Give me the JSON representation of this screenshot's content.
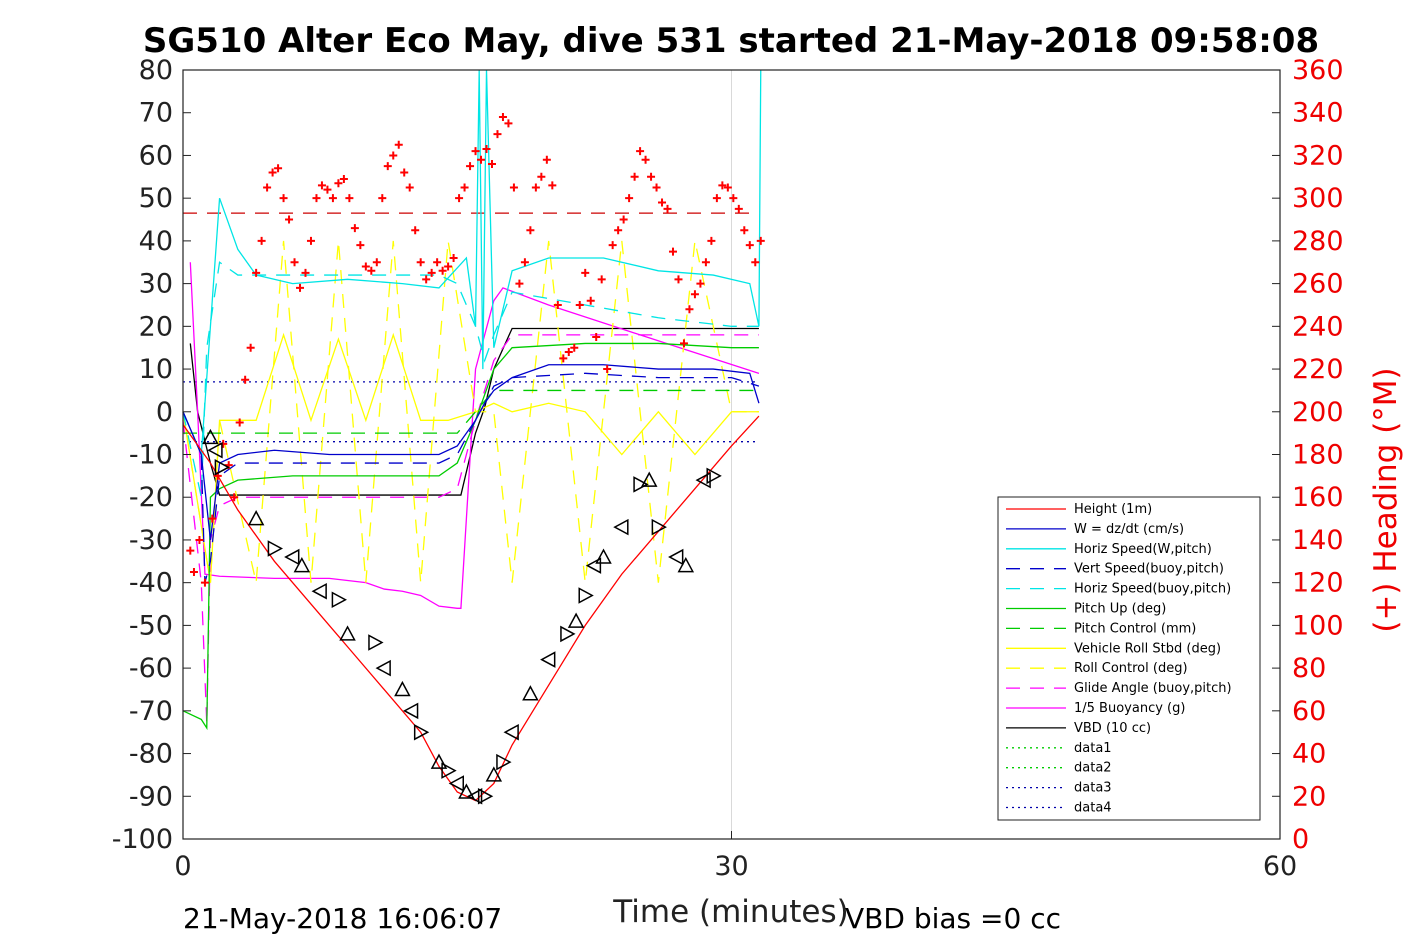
{
  "chart_data": {
    "type": "line",
    "title": "SG510 Alter Eco May, dive 531 started 21-May-2018 09:58:08",
    "xlabel": "Time (minutes)",
    "ylabel": "",
    "y2label": "(+) Heading (°M)",
    "xlim": [
      0,
      60
    ],
    "ylim": [
      -100,
      80
    ],
    "y2lim": [
      0,
      360
    ],
    "xticks": [
      0,
      30,
      60
    ],
    "yticks": [
      -100,
      -90,
      -80,
      -70,
      -60,
      -50,
      -40,
      -30,
      -20,
      -10,
      0,
      10,
      20,
      30,
      40,
      50,
      60,
      70,
      80
    ],
    "y2ticks": [
      0,
      20,
      40,
      60,
      80,
      100,
      120,
      140,
      160,
      180,
      200,
      220,
      240,
      260,
      280,
      300,
      320,
      340,
      360
    ],
    "grid": "vertical-only",
    "legend_position": "bottom-right",
    "footer_left": "21-May-2018 16:06:07",
    "footer_right": "VBD bias =0 cc",
    "series": [
      {
        "name": "Height (1m)",
        "color": "#ff0000",
        "dash": "solid",
        "x": [
          0,
          1.5,
          3,
          5,
          7,
          9,
          11,
          13,
          14,
          15,
          16,
          17,
          18,
          20,
          22,
          24,
          26,
          28,
          30,
          31.5
        ],
        "y": [
          -3,
          -12,
          -23,
          -35,
          -45,
          -55,
          -65,
          -75,
          -83,
          -89,
          -91,
          -87,
          -78,
          -64,
          -50,
          -38,
          -28,
          -18,
          -8,
          -1
        ]
      },
      {
        "name": "W = dz/dt (cm/s)",
        "color": "#0000cc",
        "dash": "solid",
        "x": [
          0,
          1,
          1.5,
          2,
          3,
          5,
          8,
          11,
          14,
          15,
          16,
          16.5,
          17,
          18,
          20,
          23,
          26,
          29,
          31,
          31.5
        ],
        "y": [
          0,
          -10,
          -30,
          -12,
          -10,
          -9,
          -10,
          -10,
          -10,
          -8,
          -2,
          2,
          5,
          8,
          11,
          11,
          10,
          10,
          9,
          2
        ]
      },
      {
        "name": "Horiz Speed(W,pitch)",
        "color": "#00e5e5",
        "dash": "solid",
        "x": [
          0,
          1,
          1.5,
          2,
          3,
          4,
          6,
          9,
          12,
          14,
          15.5,
          16,
          16.2,
          16.4,
          16.6,
          17,
          18,
          20,
          23,
          26,
          29,
          31,
          31.5,
          31.6
        ],
        "y": [
          0,
          -10,
          20,
          50,
          38,
          32,
          30,
          31,
          30,
          29,
          36,
          20,
          80,
          10,
          80,
          15,
          33,
          36,
          36,
          33,
          32,
          30,
          20,
          80
        ]
      },
      {
        "name": "Vert Speed(buoy,pitch)",
        "color": "#0000cc",
        "dash": "long",
        "x": [
          0,
          1,
          1.2,
          1.5,
          2,
          3,
          6,
          10,
          14,
          15,
          16,
          16.5,
          17,
          18,
          22,
          26,
          30,
          31.5
        ],
        "y": [
          0,
          -10,
          -40,
          -35,
          -15,
          -12,
          -12,
          -12,
          -12,
          -10,
          -2,
          2,
          6,
          8,
          9,
          8,
          8,
          6
        ]
      },
      {
        "name": "Horiz Speed(buoy,pitch)",
        "color": "#00e5e5",
        "dash": "long",
        "x": [
          0,
          1,
          1.3,
          2,
          3,
          6,
          10,
          14,
          15,
          16,
          16.5,
          17,
          18,
          22,
          26,
          30,
          31.5
        ],
        "y": [
          0,
          -20,
          15,
          35,
          32,
          32,
          32,
          32,
          30,
          20,
          12,
          18,
          28,
          25,
          22,
          20,
          20
        ]
      },
      {
        "name": "Pitch Up (deg)",
        "color": "#00cc00",
        "dash": "solid",
        "x": [
          0,
          1,
          1.3,
          1.5,
          2,
          3,
          6,
          10,
          14,
          15,
          16,
          17,
          18,
          22,
          26,
          30,
          31.5
        ],
        "y": [
          -70,
          -72,
          -74,
          -20,
          -18,
          -16,
          -15,
          -15,
          -15,
          -12,
          -2,
          10,
          15,
          16,
          16,
          15,
          15
        ]
      },
      {
        "name": "Pitch Control (mm)",
        "color": "#00cc00",
        "dash": "long",
        "x": [
          0,
          1.5,
          2,
          6,
          10,
          14,
          15,
          16,
          17,
          18,
          22,
          26,
          30,
          31.5
        ],
        "y": [
          -5,
          -5,
          -5,
          -5,
          -5,
          -5,
          -5,
          0,
          5,
          5,
          5,
          5,
          5,
          5
        ]
      },
      {
        "name": "Vehicle Roll Stbd (deg)",
        "color": "#ffff00",
        "dash": "solid",
        "x": [
          0,
          1.5,
          2,
          4,
          5.5,
          7,
          8.5,
          10,
          11.5,
          13,
          14.5,
          16,
          17,
          18,
          20,
          22,
          24,
          26,
          28,
          30,
          31.5
        ],
        "y": [
          0,
          -40,
          -2,
          -2,
          18,
          -2,
          17,
          -2,
          18,
          -2,
          -2,
          0,
          2,
          0,
          2,
          0,
          -10,
          0,
          -10,
          0,
          0
        ]
      },
      {
        "name": "Roll Control (deg)",
        "color": "#ffff00",
        "dash": "long",
        "x": [
          0,
          1.5,
          2,
          4,
          5.5,
          7,
          8.5,
          10,
          11.5,
          13,
          14.5,
          16,
          17,
          18,
          20,
          22,
          24,
          26,
          28,
          30,
          31.5
        ],
        "y": [
          0,
          -40,
          -2,
          -40,
          40,
          -40,
          40,
          -40,
          40,
          -40,
          40,
          0,
          0,
          -40,
          40,
          -40,
          40,
          -40,
          40,
          0,
          0
        ]
      },
      {
        "name": "Glide Angle (buoy,pitch)",
        "color": "#ff00ff",
        "dash": "long",
        "x": [
          0,
          1,
          1.3,
          1.5,
          2,
          3,
          6,
          10,
          14,
          15,
          16,
          17,
          18,
          22,
          26,
          30,
          31.5
        ],
        "y": [
          -2,
          -40,
          -73,
          -30,
          -22,
          -20,
          -20,
          -20,
          -20,
          -18,
          -2,
          12,
          18,
          18,
          18,
          18,
          18
        ]
      },
      {
        "name": "1/5 Buoyancy (g)",
        "color": "#ff00ff",
        "dash": "solid",
        "x": [
          0.4,
          0.8,
          1.2,
          2,
          5,
          8,
          10,
          11,
          12,
          13,
          14,
          15,
          15.2,
          16,
          17,
          17.5,
          20,
          25,
          31.5
        ],
        "y": [
          35,
          0,
          -38,
          -38.5,
          -39,
          -39,
          -40,
          -41.5,
          -42,
          -43,
          -45.5,
          -46,
          -46,
          10,
          26,
          29,
          25,
          18,
          9
        ]
      },
      {
        "name": "VBD (10 cc)",
        "color": "#000000",
        "dash": "solid",
        "x": [
          0.4,
          0.8,
          1.5,
          2,
          5,
          10,
          15,
          15.2,
          16,
          16.5,
          17,
          18,
          31.5
        ],
        "y": [
          16,
          0,
          -12,
          -19.5,
          -19.5,
          -19.5,
          -19.5,
          -19.5,
          -5,
          1,
          10,
          19.5,
          19.5
        ]
      },
      {
        "name": "data1",
        "color": "#00cc00",
        "dash": "dotted",
        "x": [],
        "y": []
      },
      {
        "name": "data2",
        "color": "#00cc00",
        "dash": "dotted",
        "x": [],
        "y": []
      },
      {
        "name": "data3",
        "color": "#0000aa",
        "dash": "dotted",
        "x": [
          0,
          31.5
        ],
        "y": [
          7,
          7
        ]
      },
      {
        "name": "data4",
        "color": "#0000aa",
        "dash": "dotted",
        "x": [
          0,
          31.5
        ],
        "y": [
          -7,
          -7
        ]
      }
    ],
    "extra_lines": [
      {
        "label": "heading reference",
        "axis": "right",
        "color": "#cc0000",
        "dash": "long",
        "x": [
          0,
          31.5
        ],
        "y": [
          293,
          293
        ]
      }
    ],
    "heading_points": {
      "axis": "right",
      "color": "#ff0000",
      "marker": "+",
      "x": [
        0.4,
        0.6,
        0.9,
        1.2,
        1.6,
        1.9,
        2.2,
        2.5,
        2.8,
        3.1,
        3.4,
        3.7,
        4.0,
        4.3,
        4.6,
        4.9,
        5.2,
        5.5,
        5.8,
        6.1,
        6.4,
        6.7,
        7.0,
        7.3,
        7.6,
        7.9,
        8.2,
        8.5,
        8.8,
        9.1,
        9.4,
        9.7,
        10.0,
        10.3,
        10.6,
        10.9,
        11.2,
        11.5,
        11.8,
        12.1,
        12.4,
        12.7,
        13.0,
        13.3,
        13.6,
        13.9,
        14.2,
        14.5,
        14.8,
        15.1,
        15.4,
        15.7,
        16.0,
        16.3,
        16.6,
        16.9,
        17.2,
        17.5,
        17.8,
        18.1,
        18.4,
        18.7,
        19.0,
        19.3,
        19.6,
        19.9,
        20.2,
        20.5,
        20.8,
        21.1,
        21.4,
        21.7,
        22.0,
        22.3,
        22.6,
        22.9,
        23.2,
        23.5,
        23.8,
        24.1,
        24.4,
        24.7,
        25.0,
        25.3,
        25.6,
        25.9,
        26.2,
        26.5,
        26.8,
        27.1,
        27.4,
        27.7,
        28.0,
        28.3,
        28.6,
        28.9,
        29.2,
        29.5,
        29.8,
        30.1,
        30.4,
        30.7,
        31.0,
        31.3,
        31.6
      ],
      "y": [
        135,
        125,
        140,
        120,
        150,
        170,
        185,
        175,
        160,
        195,
        215,
        230,
        265,
        280,
        305,
        312,
        314,
        300,
        290,
        270,
        258,
        265,
        280,
        300,
        306,
        304,
        300,
        307,
        309,
        300,
        286,
        278,
        268,
        266,
        270,
        300,
        315,
        320,
        325,
        312,
        305,
        285,
        270,
        262,
        265,
        270,
        266,
        268,
        272,
        300,
        305,
        315,
        322,
        318,
        323,
        316,
        330,
        338,
        335,
        305,
        260,
        270,
        285,
        305,
        310,
        318,
        306,
        250,
        225,
        228,
        230,
        250,
        265,
        252,
        235,
        262,
        220,
        278,
        285,
        290,
        300,
        310,
        322,
        318,
        310,
        305,
        298,
        295,
        275,
        262,
        232,
        248,
        255,
        260,
        270,
        280,
        300,
        306,
        305,
        300,
        295,
        285,
        278,
        270,
        280
      ]
    },
    "triangle_markers": {
      "color": "#000000",
      "x": [
        1.5,
        1.8,
        2.1,
        4,
        5,
        6,
        6.5,
        7.5,
        8.5,
        9,
        10.5,
        11,
        12,
        12.5,
        13,
        14,
        14.5,
        15,
        15.5,
        16,
        16.5,
        17,
        17.5,
        18,
        19,
        20,
        21,
        21.5,
        22,
        22.5,
        23,
        24,
        25,
        25.5,
        26,
        27,
        27.5,
        28.5,
        29
      ],
      "y": [
        -6,
        -9,
        -13,
        -25,
        -32,
        -34,
        -36,
        -42,
        -44,
        -52,
        -54,
        -60,
        -65,
        -70,
        -75,
        -82,
        -84,
        -87,
        -89,
        -90,
        -90,
        -85,
        -82,
        -75,
        -66,
        -58,
        -52,
        -49,
        -43,
        -36,
        -34,
        -27,
        -17,
        -16,
        -27,
        -34,
        -36,
        -16,
        -15
      ]
    }
  }
}
